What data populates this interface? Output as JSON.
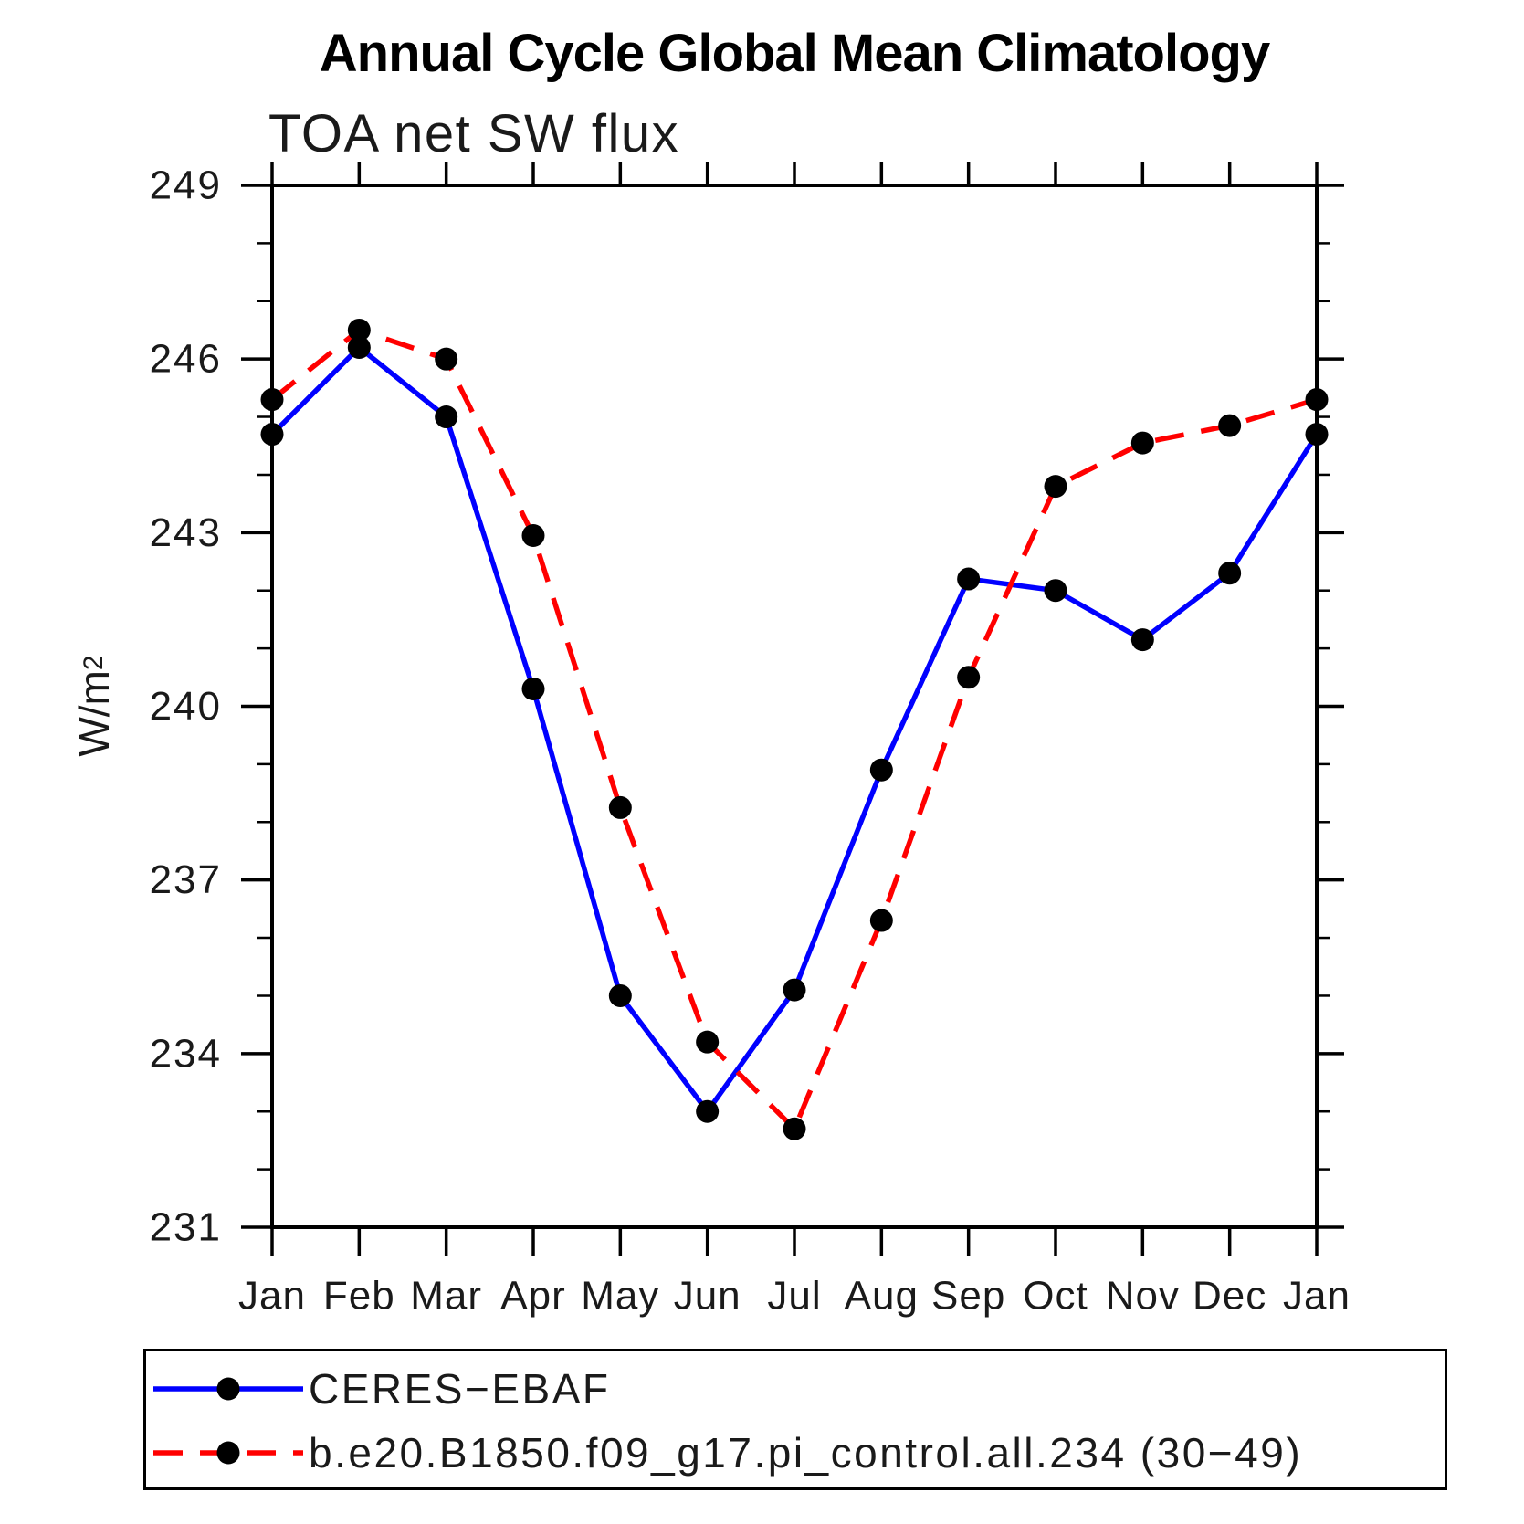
{
  "chart_data": {
    "type": "line",
    "title": "Annual Cycle Global Mean Climatology",
    "subtitle": "TOA net SW flux",
    "ylabel": {
      "base": "W/m",
      "sup": "2"
    },
    "xlabel": "",
    "categories": [
      "Jan",
      "Feb",
      "Mar",
      "Apr",
      "May",
      "Jun",
      "Jul",
      "Aug",
      "Sep",
      "Oct",
      "Nov",
      "Dec",
      "Jan"
    ],
    "ylim": [
      231,
      249
    ],
    "ytick_major_step": 3,
    "ytick_minor_step": 1,
    "ytick_labels": [
      "249",
      "246",
      "243",
      "240",
      "237",
      "234",
      "231"
    ],
    "grid": false,
    "legend_position": "bottom",
    "axis_color": "#000000",
    "series": [
      {
        "name": "CERES−EBAF",
        "color": "#0000ff",
        "line_style": "solid",
        "marker": "circle",
        "marker_color": "#000000",
        "values": [
          244.7,
          246.2,
          245.0,
          240.3,
          235.0,
          233.0,
          235.1,
          238.9,
          242.2,
          242.0,
          241.15,
          242.3,
          244.7
        ]
      },
      {
        "name": "b.e20.B1850.f09_g17.pi_control.all.234 (30−49)",
        "color": "#ff0000",
        "line_style": "dashed",
        "marker": "circle",
        "marker_color": "#000000",
        "values": [
          245.3,
          246.5,
          246.0,
          242.95,
          238.25,
          234.2,
          232.7,
          236.3,
          240.5,
          243.8,
          244.55,
          244.85,
          245.3
        ]
      }
    ]
  }
}
